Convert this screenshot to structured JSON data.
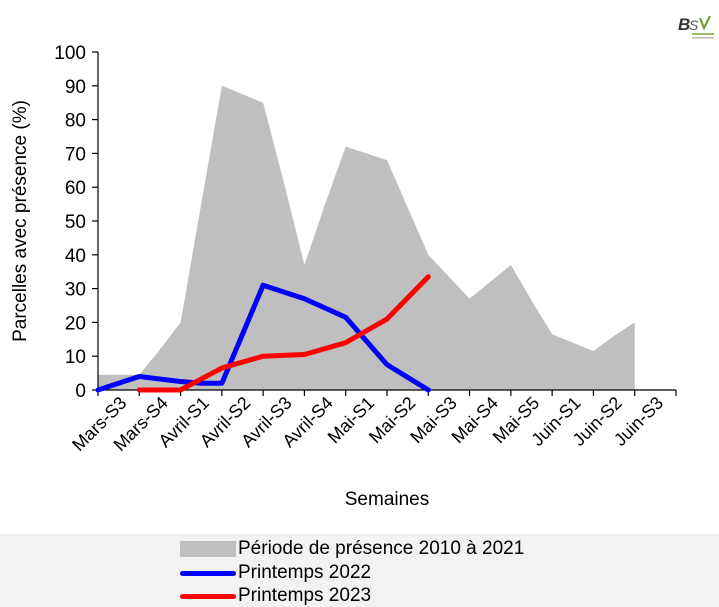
{
  "logo_text": "BSV",
  "chart_data": {
    "type": "line",
    "title": "",
    "xlabel": "Semaines",
    "ylabel": "Parcelles  avec présence (%)",
    "ylim": [
      0,
      100
    ],
    "yticks": [
      0,
      10,
      20,
      30,
      40,
      50,
      60,
      70,
      80,
      90,
      100
    ],
    "grid": false,
    "legend_position": "bottom",
    "categories": [
      "Mars-S3",
      "Mars-S4",
      "Avril-S1",
      "Avril-S2",
      "Avril-S3",
      "Avril-S4",
      "Mai-S1",
      "Mai-S2",
      "Mai-S3",
      "Mai-S4",
      "Mai-S5",
      "Juin-S1",
      "Juin-S2",
      "Juin-S3"
    ],
    "series": [
      {
        "name": "Période de présence 2010 à 2021",
        "kind": "area",
        "color": "#bfbfbf",
        "x": [
          -0.5,
          0.5,
          1.0,
          1.5,
          2.0,
          2.5,
          3.0,
          3.5,
          4.0,
          4.5,
          5.0,
          5.5,
          6.0,
          6.5,
          7.0,
          7.5,
          8.0,
          8.5,
          9.0,
          9.5,
          10.0,
          10.5,
          11.0,
          11.5,
          12.0,
          12.5
        ],
        "values": [
          4.5,
          4.5,
          12,
          20,
          55,
          90,
          87.5,
          85,
          61.5,
          37,
          55,
          72,
          70,
          68,
          54,
          40,
          33.5,
          27,
          32,
          37,
          26.5,
          16.5,
          14,
          11.5,
          16,
          20
        ]
      },
      {
        "name": "Printemps 2022",
        "kind": "line",
        "color": "#0000ff",
        "x": [
          -0.5,
          0.5,
          1.5,
          2.0,
          2.5,
          3.5,
          4.5,
          5.5,
          6.5,
          7.5
        ],
        "values": [
          0,
          4,
          2.5,
          2,
          2,
          31,
          27,
          21.5,
          7.5,
          0
        ]
      },
      {
        "name": "Printemps 2023",
        "kind": "line",
        "color": "#ff0000",
        "x": [
          0.5,
          1.5,
          2.5,
          3.5,
          4.5,
          5.5,
          6.5,
          7.5
        ],
        "values": [
          0,
          0,
          6.5,
          10,
          10.5,
          14,
          21,
          33.5
        ]
      }
    ]
  }
}
